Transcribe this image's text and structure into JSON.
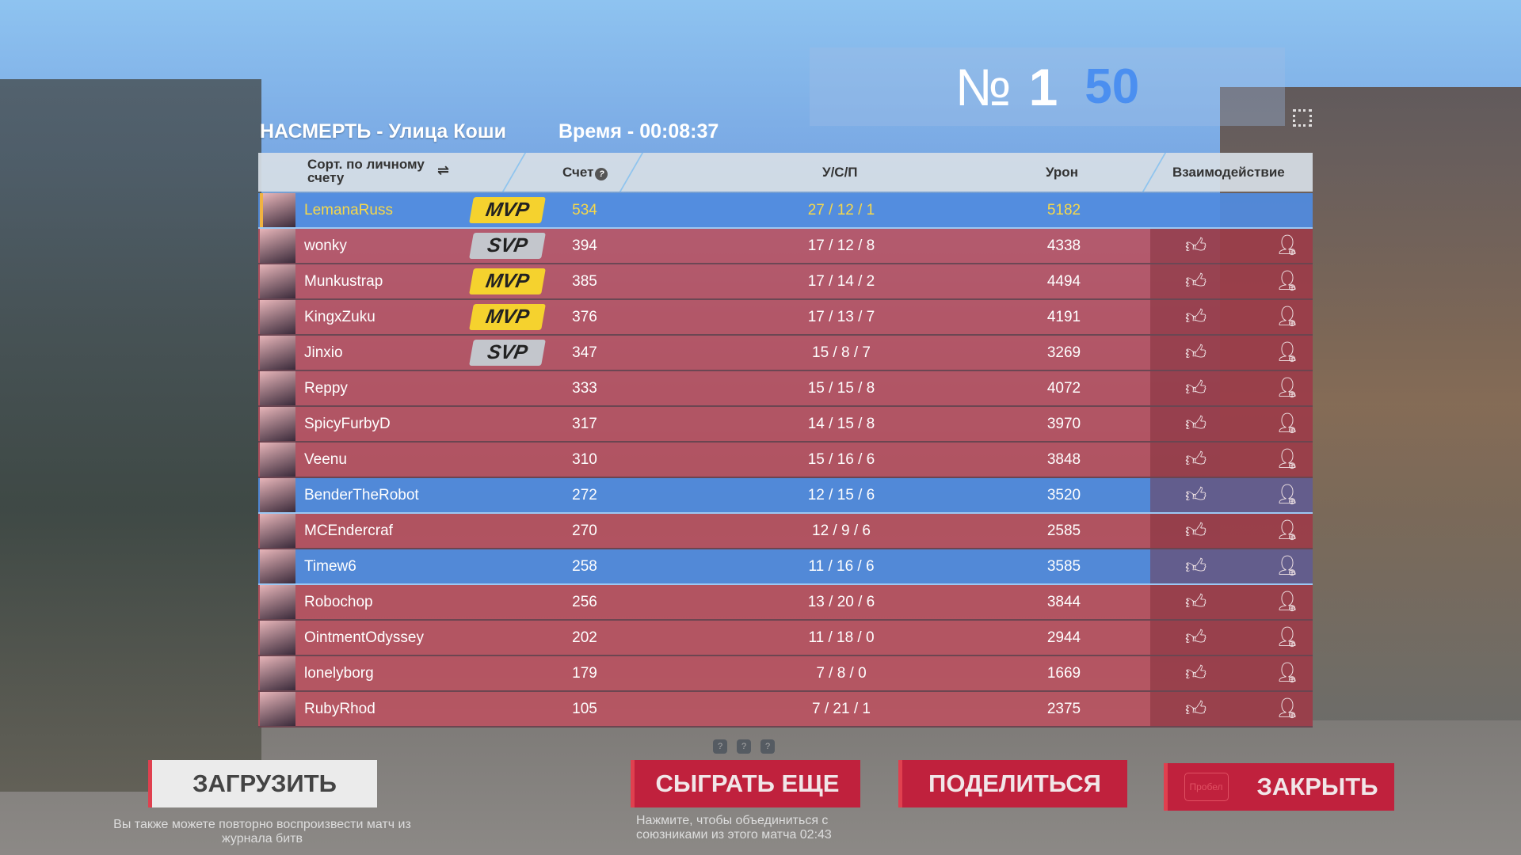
{
  "header": {
    "mode_map": "НАСМЕРТЬ - Улица Коши",
    "time": "Время - 00:08:37"
  },
  "rank": {
    "symbol": "№",
    "place": "1",
    "score": "50"
  },
  "table": {
    "columns": {
      "sort": "Сорт. по личному счету",
      "score": "Счет",
      "kda": "У/С/П",
      "damage": "Урон",
      "interaction": "Взаимодействие"
    },
    "rows": [
      {
        "name": "LemanaRuss",
        "badge": "MVP",
        "score": "534",
        "kda": "27 / 12 / 1",
        "damage": "5182",
        "team": "blue",
        "self": true
      },
      {
        "name": "wonky",
        "badge": "SVP",
        "score": "394",
        "kda": "17 / 12 / 8",
        "damage": "4338",
        "team": "red"
      },
      {
        "name": "Munkustrap",
        "badge": "MVP",
        "score": "385",
        "kda": "17 / 14 / 2",
        "damage": "4494",
        "team": "red"
      },
      {
        "name": "KingxZuku",
        "badge": "MVP",
        "score": "376",
        "kda": "17 / 13 / 7",
        "damage": "4191",
        "team": "red"
      },
      {
        "name": "Jinxio",
        "badge": "SVP",
        "score": "347",
        "kda": "15 / 8 / 7",
        "damage": "3269",
        "team": "red"
      },
      {
        "name": "Reppy",
        "badge": "",
        "score": "333",
        "kda": "15 / 15 / 8",
        "damage": "4072",
        "team": "red"
      },
      {
        "name": "SpicyFurbyD",
        "badge": "",
        "score": "317",
        "kda": "14 / 15 / 8",
        "damage": "3970",
        "team": "red"
      },
      {
        "name": "Veenu",
        "badge": "",
        "score": "310",
        "kda": "15 / 16 / 6",
        "damage": "3848",
        "team": "red"
      },
      {
        "name": "BenderTheRobot",
        "badge": "",
        "score": "272",
        "kda": "12 / 15 / 6",
        "damage": "3520",
        "team": "blue"
      },
      {
        "name": "MCEndercraf",
        "badge": "",
        "score": "270",
        "kda": "12 / 9 / 6",
        "damage": "2585",
        "team": "red"
      },
      {
        "name": "Timew6",
        "badge": "",
        "score": "258",
        "kda": "11 / 16 / 6",
        "damage": "3585",
        "team": "blue"
      },
      {
        "name": "Robochop",
        "badge": "",
        "score": "256",
        "kda": "13 / 20 / 6",
        "damage": "3844",
        "team": "red"
      },
      {
        "name": "OintmentOdyssey",
        "badge": "",
        "score": "202",
        "kda": "11 / 18 / 0",
        "damage": "2944",
        "team": "red"
      },
      {
        "name": "lonelyborg",
        "badge": "",
        "score": "179",
        "kda": "7 / 8 / 0",
        "damage": "1669",
        "team": "red"
      },
      {
        "name": "RubyRhod",
        "badge": "",
        "score": "105",
        "kda": "7 / 21 / 1",
        "damage": "2375",
        "team": "red"
      }
    ]
  },
  "buttons": {
    "load": "ЗАГРУЗИТЬ",
    "play_again": "СЫГРАТЬ ЕЩЕ",
    "share": "ПОДЕЛИТЬСЯ",
    "close": "ЗАКРЫТЬ",
    "close_key": "Пробел"
  },
  "captions": {
    "load": "Вы также можете повторно воспроизвести матч из журнала битв",
    "play_again": "Нажмите, чтобы объединиться с союзниками из этого матча  02:43"
  },
  "colors": {
    "blue_team": "#508ce1",
    "red_team": "#be505f",
    "mvp": "#f5d22e",
    "svp": "#c3c6cc",
    "button_red": "#c0213d"
  }
}
